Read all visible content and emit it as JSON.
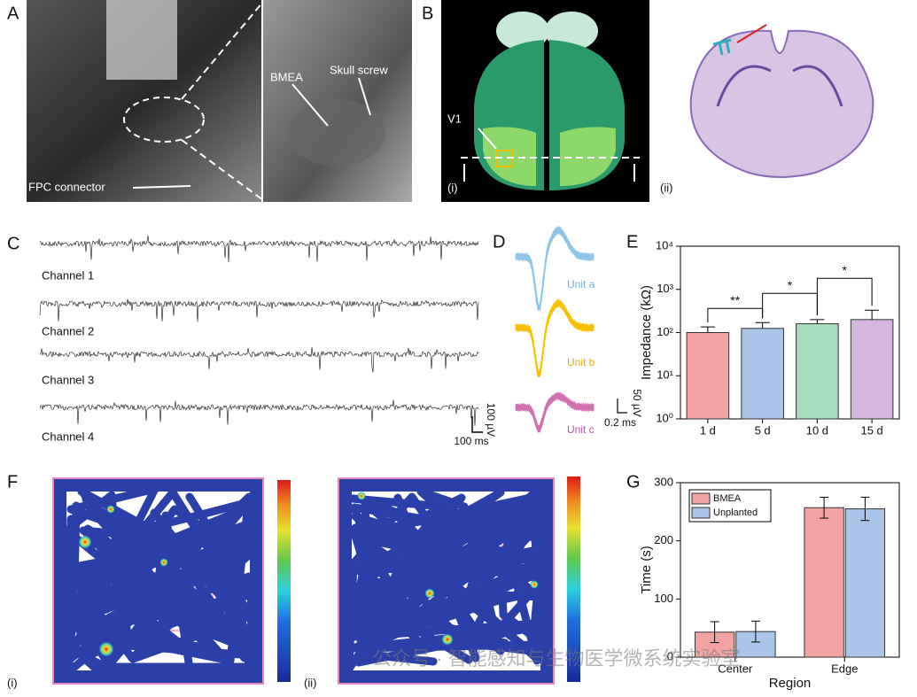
{
  "panel_labels": [
    "A",
    "B",
    "C",
    "D",
    "E",
    "F",
    "G"
  ],
  "panel_a": {
    "annotations": [
      "BMEA",
      "Skull screw",
      "FPC connector"
    ]
  },
  "panel_b": {
    "annotations": [
      "V1"
    ],
    "subpanels": [
      "(i)",
      "(ii)"
    ]
  },
  "panel_c": {
    "channels": [
      "Channel 1",
      "Channel 2",
      "Channel 3",
      "Channel 4"
    ],
    "scale_bar": {
      "vertical": "100 µV",
      "horizontal": "100 ms"
    }
  },
  "panel_d": {
    "units": [
      "Unit a",
      "Unit b",
      "Unit c"
    ],
    "scale_bar": {
      "vertical": "50 µV",
      "horizontal": "0.2 ms"
    }
  },
  "panel_f": {
    "subpanels": [
      "(i)",
      "(ii)"
    ]
  },
  "watermark": "公众号 · 智能感知与生物医学微系统实验室",
  "chart_data": [
    {
      "type": "bar",
      "y_label": "Impedance (kΩ)",
      "categories": [
        "1 d",
        "5 d",
        "10 d",
        "15 d"
      ],
      "values": [
        100,
        125,
        160,
        200
      ],
      "errors": [
        35,
        45,
        40,
        130
      ],
      "error_bars": "upper",
      "colors": [
        "#f4a3a3",
        "#a9c6ea",
        "#a8dcbf",
        "#d5b6de"
      ],
      "yscale": "log",
      "ylim": [
        1,
        10000
      ],
      "yticks": [
        {
          "value": 1,
          "label": "10⁰"
        },
        {
          "value": 10,
          "label": "10¹"
        },
        {
          "value": 100,
          "label": "10²"
        },
        {
          "value": 1000,
          "label": "10³"
        },
        {
          "value": 10000,
          "label": "10⁴"
        }
      ],
      "annotations": [
        {
          "text": "**",
          "between": [
            "1 d",
            "5 d"
          ]
        },
        {
          "text": "*",
          "between": [
            "5 d",
            "10 d"
          ]
        },
        {
          "text": "*",
          "between": [
            "10 d",
            "15 d"
          ]
        }
      ]
    },
    {
      "type": "bar",
      "y_label": "Time (s)",
      "x_label": "Region",
      "categories": [
        "Center",
        "Edge"
      ],
      "series": [
        {
          "name": "BMEA",
          "color": "#f4a3a3",
          "values": [
            43,
            257
          ],
          "errors": [
            18,
            18
          ]
        },
        {
          "name": "Unplanted",
          "color": "#a9c6ea",
          "values": [
            44,
            255
          ],
          "errors": [
            18,
            20
          ]
        }
      ],
      "error_bars": "both",
      "legend": "upper left",
      "ylim": [
        0,
        300
      ],
      "yticks": [
        0,
        100,
        200,
        300
      ]
    }
  ]
}
